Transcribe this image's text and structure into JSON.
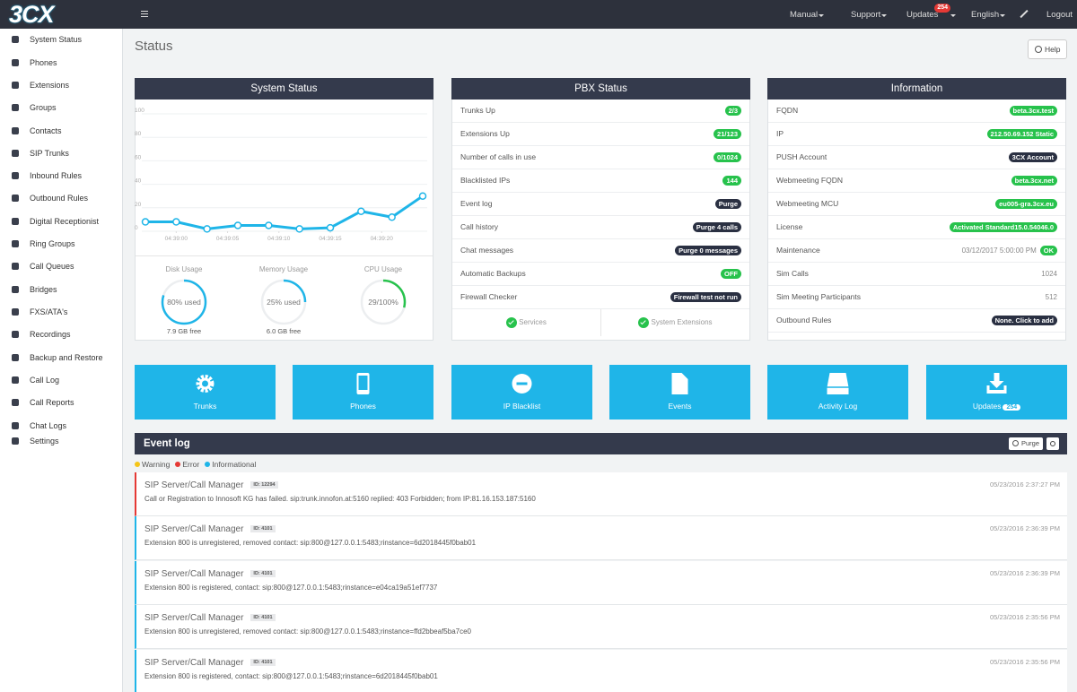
{
  "topbar": {
    "logo": "3CX",
    "menu": [
      {
        "label": "Manual"
      },
      {
        "label": "Support"
      },
      {
        "label": "Updates",
        "badge": "254"
      },
      {
        "label": "English"
      }
    ],
    "logout": "Logout"
  },
  "sidebar": [
    "System Status",
    "Phones",
    "Extensions",
    "Groups",
    "Contacts",
    "SIP Trunks",
    "Inbound Rules",
    "Outbound Rules",
    "Digital Receptionist",
    "Ring Groups",
    "Call Queues",
    "Bridges",
    "FXS/ATA's",
    "Recordings",
    "Backup and Restore",
    "Call Log",
    "Call Reports",
    "Chat Logs",
    "Settings"
  ],
  "page_title": "Status",
  "help": "Help",
  "system_status": {
    "title": "System Status",
    "chart": {
      "type": "line",
      "color": "#1fb5e8",
      "x": [
        -3,
        0,
        3,
        6,
        9,
        12,
        15,
        18,
        21,
        24
      ],
      "values": [
        8,
        8,
        2,
        5,
        5,
        2,
        3,
        17,
        12,
        30
      ],
      "xlim": [
        -3,
        24
      ],
      "xticks": [
        {
          "value": 0,
          "label": "04:39:00"
        },
        {
          "value": 5,
          "label": "04:39:05"
        },
        {
          "value": 10,
          "label": "04:39:10"
        },
        {
          "value": 15,
          "label": "04:39:15"
        },
        {
          "value": 20,
          "label": "04:39:20"
        }
      ],
      "ylim": [
        0,
        100
      ],
      "yticks": [
        0,
        20,
        40,
        60,
        80,
        100
      ],
      "grid": true
    },
    "gauges": [
      {
        "title": "Disk Usage",
        "value": 80,
        "label": "80% used",
        "note": "7.9 GB free",
        "color": "#1fb5e8"
      },
      {
        "title": "Memory Usage",
        "value": 25,
        "label": "25% used",
        "note": "6.0 GB free",
        "color": "#1fb5e8"
      },
      {
        "title": "CPU Usage",
        "value": 29,
        "label": "29/100%",
        "color": "#27c24c"
      }
    ]
  },
  "pbx_status": {
    "title": "PBX Status",
    "rows": [
      {
        "label": "Trunks Up",
        "badge": "2/3",
        "color": "#27c24c"
      },
      {
        "label": "Extensions Up",
        "badge": "21/123",
        "color": "#27c24c"
      },
      {
        "label": "Number of calls in use",
        "badge": "0/1024",
        "color": "#27c24c"
      },
      {
        "label": "Blacklisted IPs",
        "badge": "144",
        "color": "#27c24c"
      },
      {
        "label": "Event log",
        "badge": "Purge",
        "color": "#2a3042"
      },
      {
        "label": "Call history",
        "badge": "Purge 4 calls",
        "color": "#2a3042"
      },
      {
        "label": "Chat messages",
        "badge": "Purge 0 messages",
        "color": "#2a3042"
      },
      {
        "label": "Automatic Backups",
        "badge": "OFF",
        "color": "#27c24c"
      },
      {
        "label": "Firewall Checker",
        "badge": "Firewall test not run",
        "color": "#2a3042"
      }
    ],
    "footer": [
      "Services",
      "System Extensions"
    ]
  },
  "information": {
    "title": "Information",
    "rows": [
      {
        "label": "FQDN",
        "badge": "beta.3cx.test",
        "color": "#27c24c"
      },
      {
        "label": "IP",
        "badge": "212.50.69.152 Static",
        "color": "#27c24c"
      },
      {
        "label": "PUSH Account",
        "badge": "3CX Account",
        "color": "#2a3042"
      },
      {
        "label": "Webmeeting FQDN",
        "badge": "beta.3cx.net",
        "color": "#27c24c"
      },
      {
        "label": "Webmeeting MCU",
        "badge": "eu005-gra.3cx.eu",
        "color": "#27c24c"
      },
      {
        "label": "License",
        "badge": "Activated Standard15.0.54046.0",
        "color": "#27c24c"
      },
      {
        "label": "Maintenance",
        "value": "03/12/2017 5:00:00 PM",
        "badge": "OK",
        "color": "#27c24c"
      },
      {
        "label": "Sim Calls",
        "value": "1024"
      },
      {
        "label": "Sim Meeting Participants",
        "value": "512"
      },
      {
        "label": "Outbound Rules",
        "badge": "None. Click to add",
        "color": "#2a3042"
      }
    ]
  },
  "tiles": [
    {
      "label": "Trunks"
    },
    {
      "label": "Phones"
    },
    {
      "label": "IP Blacklist"
    },
    {
      "label": "Events"
    },
    {
      "label": "Activity Log"
    },
    {
      "label": "Updates",
      "badge": "254"
    }
  ],
  "event_log": {
    "title": "Event log",
    "purge": "Purge",
    "legend": [
      {
        "name": "Warning",
        "color": "#f5c518"
      },
      {
        "name": "Error",
        "color": "#e53935"
      },
      {
        "name": "Informational",
        "color": "#1fb5e8"
      }
    ],
    "entries": [
      {
        "source": "SIP Server/Call Manager",
        "id": "ID: 12294",
        "message": "Call or Registration to Innosoft KG has failed. sip:trunk.innofon.at:5160 replied: 403 Forbidden; from IP:81.16.153.187:5160",
        "time": "05/23/2016 2:37:27 PM",
        "color": "#e53935"
      },
      {
        "source": "SIP Server/Call Manager",
        "id": "ID: 4101",
        "message": "Extension 800 is unregistered, removed contact: sip:800@127.0.0.1:5483;rinstance=6d2018445f0bab01",
        "time": "05/23/2016 2:36:39 PM",
        "color": "#1fb5e8"
      },
      {
        "source": "SIP Server/Call Manager",
        "id": "ID: 4101",
        "message": "Extension 800 is registered, contact: sip:800@127.0.0.1:5483;rinstance=e04ca19a51ef7737",
        "time": "05/23/2016 2:36:39 PM",
        "color": "#1fb5e8"
      },
      {
        "source": "SIP Server/Call Manager",
        "id": "ID: 4101",
        "message": "Extension 800 is unregistered, removed contact: sip:800@127.0.0.1:5483;rinstance=ffd2bbeaf5ba7ce0",
        "time": "05/23/2016 2:35:56 PM",
        "color": "#1fb5e8"
      },
      {
        "source": "SIP Server/Call Manager",
        "id": "ID: 4101",
        "message": "Extension 800 is registered, contact: sip:800@127.0.0.1:5483;rinstance=6d2018445f0bab01",
        "time": "05/23/2016 2:35:56 PM",
        "color": "#1fb5e8"
      }
    ]
  }
}
